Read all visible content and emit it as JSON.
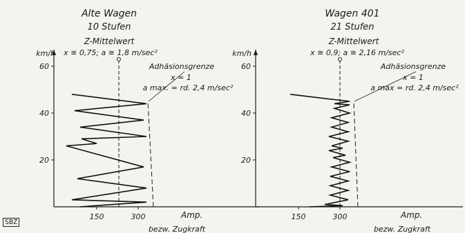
{
  "badge": "SBZ",
  "chart_data": [
    {
      "type": "line",
      "title": "Alte Wagen",
      "subtitle": "10 Stufen",
      "mean_label": "Z-Mittelwert",
      "mean_values": "x ≅ 0,75; a ≅ 1,8 m/sec²",
      "limit_label": "Adhäsionsgrenze",
      "limit_x": "x = 1",
      "limit_amax": "a max. = rd. 2,4 m/sec²",
      "ylabel": "km/h",
      "xlabel": "Amp.",
      "xlabel2": "bezw. Zugkraft",
      "xticks": [
        150,
        300
      ],
      "yticks": [
        20,
        40,
        60
      ],
      "xlim": [
        0,
        390
      ],
      "ylim": [
        0,
        68
      ],
      "mean_x": 230,
      "limit_line": [
        [
          355,
          0
        ],
        [
          335,
          45
        ]
      ],
      "series": [
        {
          "values": [
            [
              90,
              0
            ],
            [
              330,
              2
            ],
            [
              60,
              3
            ],
            [
              330,
              8
            ],
            [
              80,
              12
            ],
            [
              320,
              17
            ],
            [
              40,
              26
            ],
            [
              150,
              27
            ],
            [
              95,
              29
            ],
            [
              330,
              30
            ],
            [
              90,
              34
            ],
            [
              320,
              37
            ],
            [
              70,
              41
            ],
            [
              330,
              44
            ],
            [
              60,
              48
            ]
          ]
        }
      ]
    },
    {
      "type": "line",
      "title": "Wagen 401",
      "subtitle": "21 Stufen",
      "mean_label": "Z-Mittelwert",
      "mean_values": "x ≅ 0,9; a ≅ 2,16 m/sec²",
      "limit_label": "Adhäsionsgrenze",
      "limit_x": "x = 1",
      "limit_amax": "a max = rd. 2,4 m/sec²",
      "ylabel": "km/h",
      "xlabel": "Amp.",
      "xlabel2": "bezw. Zugkraft",
      "xticks": [
        150,
        300
      ],
      "yticks": [
        20,
        40,
        60
      ],
      "xlim": [
        0,
        390
      ],
      "ylim": [
        0,
        68
      ],
      "mean_x": 300,
      "limit_line": [
        [
          365,
          0
        ],
        [
          350,
          45
        ]
      ],
      "series": [
        {
          "values": [
            [
              190,
              0
            ],
            [
              310,
              0.5
            ],
            [
              245,
              1
            ],
            [
              330,
              3
            ],
            [
              265,
              5
            ],
            [
              330,
              7
            ],
            [
              265,
              9
            ],
            [
              330,
              11
            ],
            [
              265,
              13
            ],
            [
              335,
              15
            ],
            [
              270,
              17
            ],
            [
              335,
              19
            ],
            [
              275,
              21
            ],
            [
              320,
              22
            ],
            [
              260,
              24
            ],
            [
              310,
              25
            ],
            [
              270,
              26
            ],
            [
              330,
              28
            ],
            [
              260,
              30
            ],
            [
              330,
              32
            ],
            [
              270,
              34
            ],
            [
              330,
              36
            ],
            [
              270,
              38
            ],
            [
              335,
              40
            ],
            [
              280,
              42
            ],
            [
              335,
              43.5
            ],
            [
              280,
              44
            ],
            [
              335,
              45
            ],
            [
              260,
              46
            ],
            [
              120,
              48
            ]
          ]
        }
      ]
    }
  ]
}
